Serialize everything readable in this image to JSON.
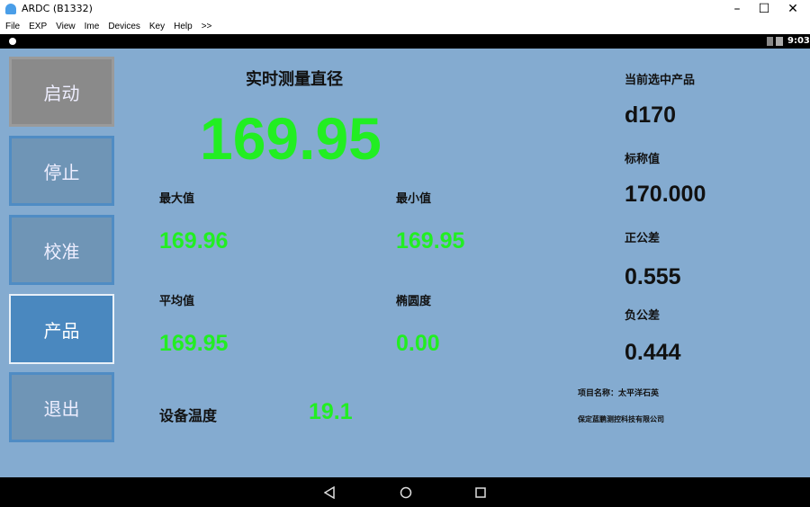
{
  "window": {
    "title": "ARDC (B1332)",
    "menu": [
      "File",
      "EXP",
      "View",
      "Ime",
      "Devices",
      "Key",
      "Help",
      ">>"
    ]
  },
  "status": {
    "time": "9:03"
  },
  "buttons": [
    "启动",
    "停止",
    "校准",
    "产品",
    "退出"
  ],
  "main": {
    "title": "实时测量直径",
    "value": "169.95",
    "max_label": "最大值",
    "max_value": "169.96",
    "min_label": "最小值",
    "min_value": "169.95",
    "avg_label": "平均值",
    "avg_value": "169.95",
    "ovality_label": "椭圆度",
    "ovality_value": "0.00",
    "temp_label": "设备温度",
    "temp_value": "19.1"
  },
  "right": {
    "product_label": "当前选中产品",
    "product_value": "d170",
    "nominal_label": "标称值",
    "nominal_value": "170.000",
    "pos_tol_label": "正公差",
    "pos_tol_value": "0.555",
    "neg_tol_label": "负公差",
    "neg_tol_value": "0.444",
    "project": "项目名称：太平洋石英",
    "company": "保定蓝鹏测控科技有限公司"
  }
}
